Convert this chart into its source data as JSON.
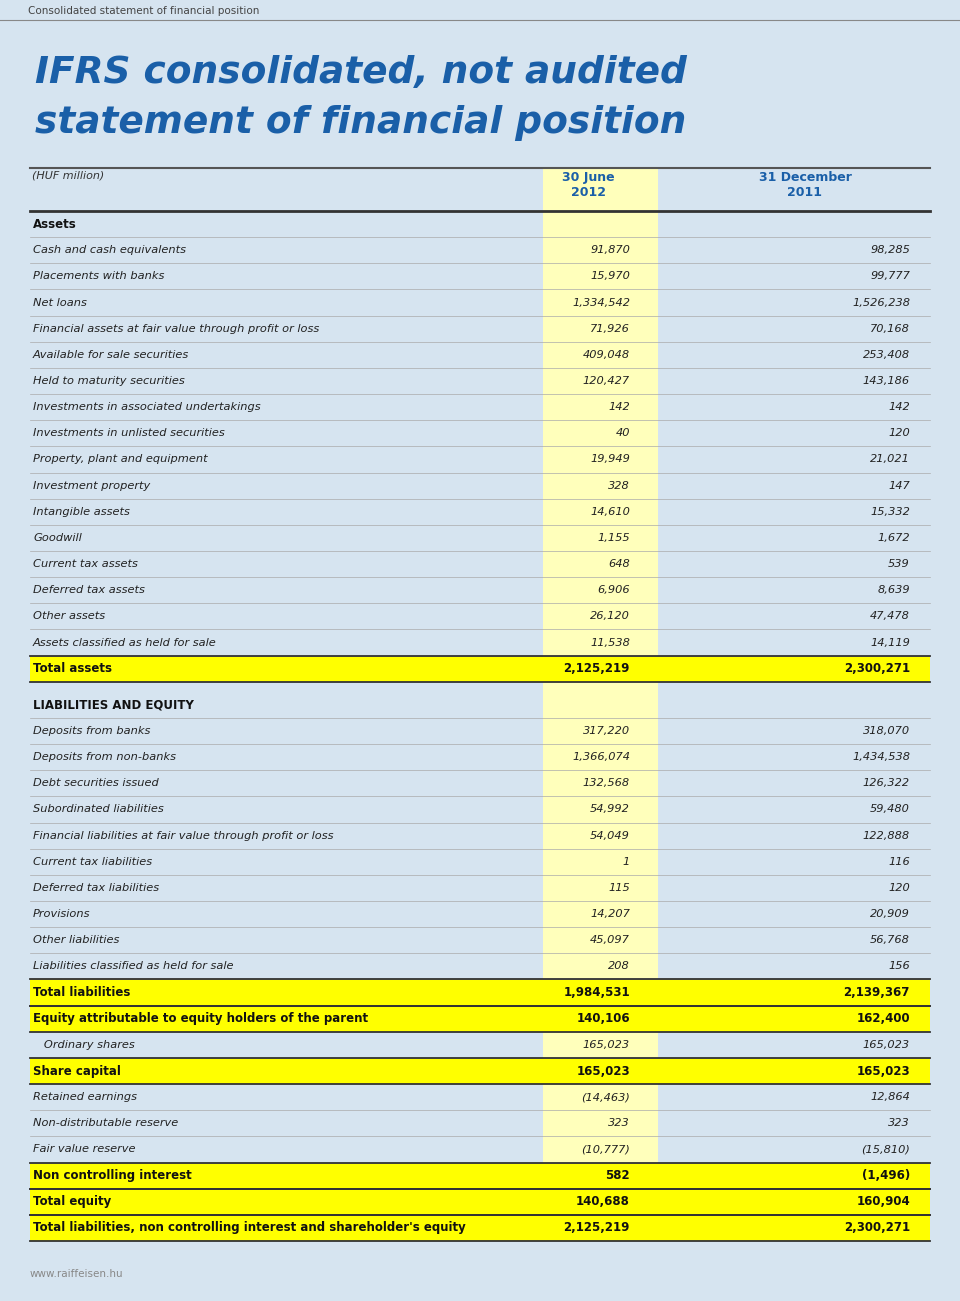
{
  "page_bg": "#d6e4f0",
  "header_text": "Consolidated statement of financial position",
  "title_line1": "IFRS consolidated, not audited",
  "title_line2": "statement of financial position",
  "title_color": "#1a5fa8",
  "col_header_color": "#1a5fa8",
  "col1_header_line1": "30 June",
  "col1_header_line2": "2012",
  "col2_header_line1": "31 December",
  "col2_header_line2": "2011",
  "yellow_bright": "#ffff00",
  "yellow_light": "#ffffbb",
  "rows": [
    {
      "label": "Assets",
      "v1": "",
      "v2": "",
      "style": "section"
    },
    {
      "label": "Cash and cash equivalents",
      "v1": "91,870",
      "v2": "98,285",
      "style": "normal"
    },
    {
      "label": "Placements with banks",
      "v1": "15,970",
      "v2": "99,777",
      "style": "normal"
    },
    {
      "label": "Net loans",
      "v1": "1,334,542",
      "v2": "1,526,238",
      "style": "normal"
    },
    {
      "label": "Financial assets at fair value through profit or loss",
      "v1": "71,926",
      "v2": "70,168",
      "style": "normal"
    },
    {
      "label": "Available for sale securities",
      "v1": "409,048",
      "v2": "253,408",
      "style": "normal"
    },
    {
      "label": "Held to maturity securities",
      "v1": "120,427",
      "v2": "143,186",
      "style": "normal"
    },
    {
      "label": "Investments in associated undertakings",
      "v1": "142",
      "v2": "142",
      "style": "normal"
    },
    {
      "label": "Investments in unlisted securities",
      "v1": "40",
      "v2": "120",
      "style": "normal"
    },
    {
      "label": "Property, plant and equipment",
      "v1": "19,949",
      "v2": "21,021",
      "style": "normal"
    },
    {
      "label": "Investment property",
      "v1": "328",
      "v2": "147",
      "style": "normal"
    },
    {
      "label": "Intangible assets",
      "v1": "14,610",
      "v2": "15,332",
      "style": "normal"
    },
    {
      "label": "Goodwill",
      "v1": "1,155",
      "v2": "1,672",
      "style": "normal"
    },
    {
      "label": "Current tax assets",
      "v1": "648",
      "v2": "539",
      "style": "normal"
    },
    {
      "label": "Deferred tax assets",
      "v1": "6,906",
      "v2": "8,639",
      "style": "normal"
    },
    {
      "label": "Other assets",
      "v1": "26,120",
      "v2": "47,478",
      "style": "normal"
    },
    {
      "label": "Assets classified as held for sale",
      "v1": "11,538",
      "v2": "14,119",
      "style": "normal"
    },
    {
      "label": "Total assets",
      "v1": "2,125,219",
      "v2": "2,300,271",
      "style": "total"
    },
    {
      "label": "",
      "v1": "",
      "v2": "",
      "style": "spacer"
    },
    {
      "label": "LIABILITIES AND EQUITY",
      "v1": "",
      "v2": "",
      "style": "section"
    },
    {
      "label": "Deposits from banks",
      "v1": "317,220",
      "v2": "318,070",
      "style": "normal"
    },
    {
      "label": "Deposits from non-banks",
      "v1": "1,366,074",
      "v2": "1,434,538",
      "style": "normal"
    },
    {
      "label": "Debt securities issued",
      "v1": "132,568",
      "v2": "126,322",
      "style": "normal"
    },
    {
      "label": "Subordinated liabilities",
      "v1": "54,992",
      "v2": "59,480",
      "style": "normal"
    },
    {
      "label": "Financial liabilities at fair value through profit or loss",
      "v1": "54,049",
      "v2": "122,888",
      "style": "normal"
    },
    {
      "label": "Current tax liabilities",
      "v1": "1",
      "v2": "116",
      "style": "normal"
    },
    {
      "label": "Deferred tax liabilities",
      "v1": "115",
      "v2": "120",
      "style": "normal"
    },
    {
      "label": "Provisions",
      "v1": "14,207",
      "v2": "20,909",
      "style": "normal"
    },
    {
      "label": "Other liabilities",
      "v1": "45,097",
      "v2": "56,768",
      "style": "normal"
    },
    {
      "label": "Liabilities classified as held for sale",
      "v1": "208",
      "v2": "156",
      "style": "normal"
    },
    {
      "label": "Total liabilities",
      "v1": "1,984,531",
      "v2": "2,139,367",
      "style": "total"
    },
    {
      "label": "Equity attributable to equity holders of the parent",
      "v1": "140,106",
      "v2": "162,400",
      "style": "total"
    },
    {
      "label": "   Ordinary shares",
      "v1": "165,023",
      "v2": "165,023",
      "style": "normal"
    },
    {
      "label": "Share capital",
      "v1": "165,023",
      "v2": "165,023",
      "style": "total"
    },
    {
      "label": "Retained earnings",
      "v1": "(14,463)",
      "v2": "12,864",
      "style": "normal"
    },
    {
      "label": "Non-distributable reserve",
      "v1": "323",
      "v2": "323",
      "style": "normal"
    },
    {
      "label": "Fair value reserve",
      "v1": "(10,777)",
      "v2": "(15,810)",
      "style": "normal"
    },
    {
      "label": "Non controlling interest",
      "v1": "582",
      "v2": "(1,496)",
      "style": "total"
    },
    {
      "label": "Total equity",
      "v1": "140,688",
      "v2": "160,904",
      "style": "total"
    },
    {
      "label": "Total liabilities, non controlling interest and shareholder's equity",
      "v1": "2,125,219",
      "v2": "2,300,271",
      "style": "total"
    }
  ],
  "footer_text": "www.raiffeisen.hu"
}
